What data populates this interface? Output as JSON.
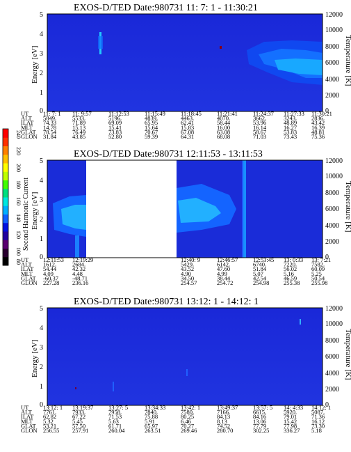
{
  "colorbar": {
    "label": "Second Harmonic Current",
    "ticks": [
      "80",
      "100",
      "120",
      "140",
      "160",
      "180",
      "200",
      "220",
      "240"
    ],
    "colors": [
      "#000000",
      "#2a0030",
      "#5a0070",
      "#2000a0",
      "#0010e0",
      "#1060ff",
      "#00b0ff",
      "#00e8e0",
      "#00e080",
      "#40ff00",
      "#c0ff00",
      "#ffff00",
      "#ffc000",
      "#ff8000",
      "#ff3000",
      "#ff0000"
    ]
  },
  "panels": [
    {
      "title": "EXOS-D/TED   Date:980731  11: 7: 1 - 11:30:21",
      "ylabel_left": "Energy [eV]",
      "ylabel_right": "Temperature [K]",
      "yticks_left": [
        "0",
        "1",
        "2",
        "3",
        "4",
        "5"
      ],
      "yticks_right": [
        "0",
        "2000",
        "4000",
        "6000",
        "8000",
        "10000",
        "12000"
      ],
      "ephem_labels": [
        "UT",
        "ALT",
        "ILAT",
        "MLT",
        "GLAT",
        "GLON"
      ],
      "ephem_cols": [
        [
          "11: 7: 1",
          "5849.",
          "74.33",
          "14.78",
          "78.54",
          "31.84"
        ],
        [
          "11: 9:57",
          "5533.",
          "71.89",
          "15.13",
          "76.49",
          "43.85"
        ],
        [
          "11:12:53",
          "5196.",
          "69.09",
          "15.41",
          "73.83",
          "52.80"
        ],
        [
          "11:15:49",
          "4839.",
          "65.95",
          "15.64",
          "70.67",
          "59.39"
        ],
        [
          "11:18:45",
          "4463.",
          "62.41",
          "15.83",
          "67.08",
          "64.31"
        ],
        [
          "11:21:41",
          "4070.",
          "58.44",
          "16.00",
          "63.08",
          "68.08"
        ],
        [
          "11:24:37",
          "3662.",
          "53.96",
          "16.14",
          "58.67",
          "71.03"
        ],
        [
          "11:27:33",
          "3243.",
          "48.89",
          "16.27",
          "53.83",
          "73.43"
        ],
        [
          "11:30:21",
          "2836.",
          "43.42",
          "16.39",
          "48.81",
          "75.36"
        ]
      ],
      "chart_data": {
        "type": "heatmap",
        "title": "EXOS-D/TED   Date:980731  11: 7: 1 - 11:30:21",
        "x": [
          "11: 7: 1",
          "11: 9:57",
          "11:12:53",
          "11:15:49",
          "11:18:45",
          "11:21:41",
          "11:24:37",
          "11:27:33",
          "11:30:21"
        ],
        "xlabel": "UT",
        "ylabel": "Energy [eV]",
        "ylim": [
          0,
          5
        ],
        "y2label": "Temperature [K]",
        "y2lim": [
          0,
          12000
        ]
      }
    },
    {
      "title": "EXOS-D/TED   Date:980731  12:11:53 - 13:11:53",
      "ylabel_left": "Energy [eV]",
      "ylabel_right": "Temperature [K]",
      "yticks_left": [
        "0",
        "1",
        "2",
        "3",
        "4",
        "5"
      ],
      "yticks_right": [
        "0",
        "2000",
        "4000",
        "6000",
        "8000",
        "10000",
        "12000"
      ],
      "ephem_labels": [
        "UT",
        "ALT",
        "ILAT",
        "MLT",
        "GLAT",
        "GLON"
      ],
      "ephem_cols": [
        [
          "12:11:53",
          "1612.",
          "54.44",
          "4.09",
          "-60.37",
          "227.28"
        ],
        [
          "12:19:29",
          "2684.",
          "42.32",
          "4.48",
          "-48.71",
          "236.16"
        ],
        [
          "",
          "",
          "",
          "",
          "",
          ""
        ],
        [
          "",
          "",
          "",
          "",
          "",
          ""
        ],
        [
          "12:40: 9",
          "5429.",
          "43.52",
          "4.90",
          "34.50",
          "254.57"
        ],
        [
          "12:46:57",
          "6142.",
          "47.60",
          "4.99",
          "38.44",
          "254.72"
        ],
        [
          "12:53:45",
          "6740.",
          "51.84",
          "5.07",
          "42.54",
          "254.98"
        ],
        [
          "13: 0:33",
          "7220.",
          "56.02",
          "5.16",
          "46.59",
          "255.38"
        ],
        [
          "13: 7:21",
          "7582.",
          "60.09",
          "5.25",
          "50.54",
          "255.98"
        ]
      ],
      "chart_data": {
        "type": "heatmap",
        "title": "EXOS-D/TED   Date:980731  12:11:53 - 13:11:53",
        "x": [
          "12:11:53",
          "12:19:29",
          "12:40: 9",
          "12:46:57",
          "12:53:45",
          "13: 0:33",
          "13: 7:21"
        ],
        "xlabel": "UT",
        "ylabel": "Energy [eV]",
        "ylim": [
          0,
          5
        ],
        "y2label": "Temperature [K]",
        "y2lim": [
          0,
          12000
        ]
      }
    },
    {
      "title": "EXOS-D/TED   Date:980731  13:12: 1 - 14:12: 1",
      "ylabel_left": "Energy [eV]",
      "ylabel_right": "Temperature [K]",
      "yticks_left": [
        "0",
        "1",
        "2",
        "3",
        "4",
        "5"
      ],
      "yticks_right": [
        "0",
        "2000",
        "4000",
        "6000",
        "8000",
        "10000",
        "12000"
      ],
      "ephem_labels": [
        "UT",
        "ALT",
        "ILAT",
        "MLT",
        "GLAT",
        "GLON"
      ],
      "ephem_cols": [
        [
          "13:12: 1",
          "7761.",
          "62.82",
          "5.32",
          "53.21",
          "256.55"
        ],
        [
          "13:19:37",
          "7933.",
          "67.22",
          "5.45",
          "57.50",
          "257.91"
        ],
        [
          "13:27: 5",
          "7958.",
          "71.53",
          "5.63",
          "61.71",
          "260.04"
        ],
        [
          "13:34:33",
          "7840.",
          "75.88",
          "5.91",
          "65.97",
          "263.51"
        ],
        [
          "13:42: 1",
          "7580.",
          "80.25",
          "6.46",
          "70.27",
          "269.46"
        ],
        [
          "13:49:37",
          "7166.",
          "84.13",
          "8.13",
          "74.52",
          "280.70"
        ],
        [
          "13:57: 5",
          "6615.",
          "84.16",
          "13.06",
          "77.79",
          "302.25"
        ],
        [
          "14: 4:33",
          "5920.",
          "79.01",
          "15.42",
          "77.98",
          "336.27"
        ],
        [
          "14:12: 1",
          "5087.",
          "71.36",
          "16.12",
          "73.30",
          "5.18"
        ]
      ],
      "chart_data": {
        "type": "heatmap",
        "title": "EXOS-D/TED   Date:980731  13:12: 1 - 14:12: 1",
        "x": [
          "13:12: 1",
          "13:19:37",
          "13:27: 5",
          "13:34:33",
          "13:42: 1",
          "13:49:37",
          "13:57: 5",
          "14: 4:33",
          "14:12: 1"
        ],
        "xlabel": "UT",
        "ylabel": "Energy [eV]",
        "ylim": [
          0,
          5
        ],
        "y2label": "Temperature [K]",
        "y2lim": [
          0,
          12000
        ]
      }
    }
  ]
}
